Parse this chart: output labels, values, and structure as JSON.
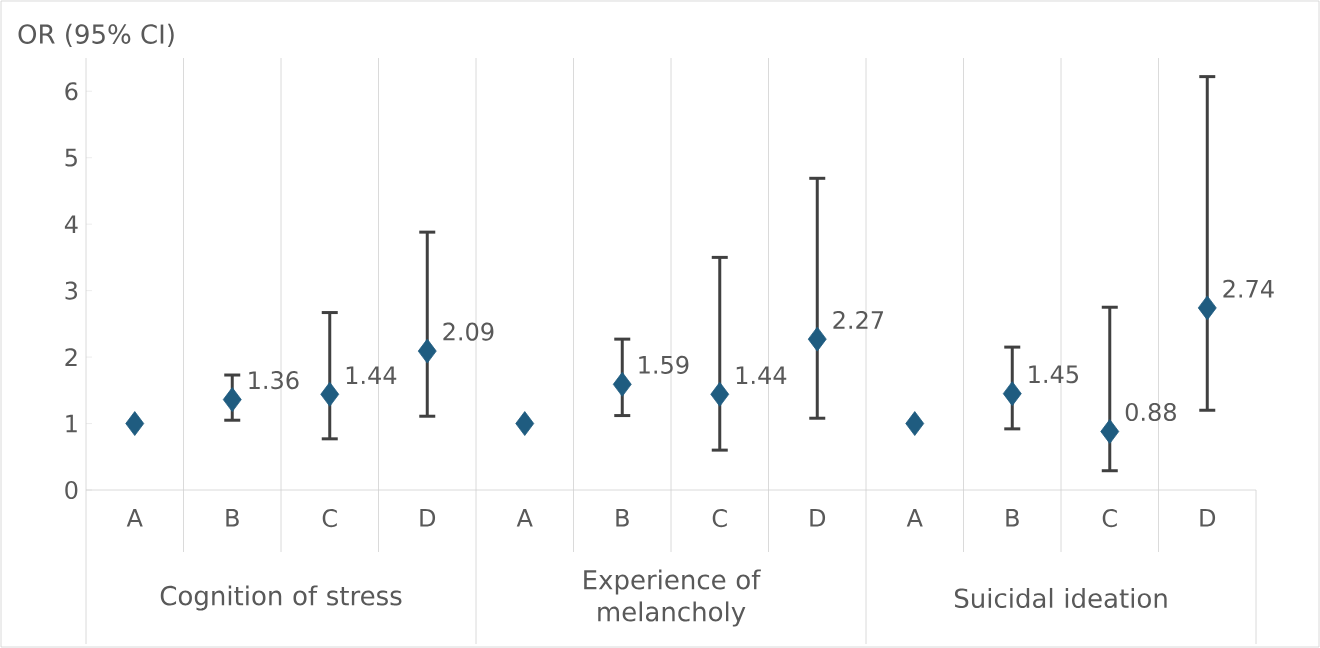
{
  "chart_data": {
    "type": "scatter",
    "ylabel": "OR (95% CI)",
    "categories": [
      "A",
      "B",
      "C",
      "D",
      "A",
      "B",
      "C",
      "D",
      "A",
      "B",
      "C",
      "D"
    ],
    "values": [
      1,
      1.36,
      1.44,
      2.09,
      1,
      1.59,
      1.44,
      2.27,
      1,
      1.45,
      0.88,
      2.74
    ],
    "errors": [
      null,
      [
        1.05,
        1.73
      ],
      [
        0.77,
        2.67
      ],
      [
        1.11,
        3.88
      ],
      null,
      [
        1.12,
        2.27
      ],
      [
        0.6,
        3.5
      ],
      [
        1.08,
        4.69
      ],
      null,
      [
        0.92,
        2.15
      ],
      [
        0.29,
        2.75
      ],
      [
        1.2,
        6.22
      ]
    ],
    "value_labels": [
      null,
      "1.36",
      "1.44",
      "2.09",
      null,
      "1.59",
      "1.44",
      "2.27",
      null,
      "1.45",
      "0.88",
      "2.74"
    ],
    "color": "#1f5c80",
    "marker": "diamond",
    "grid": "x",
    "ylim": [
      0,
      6.5
    ],
    "yticks": [
      0,
      1,
      2,
      3,
      4,
      5,
      6
    ],
    "annotations": [
      "Cognition of stress",
      "Experience of melancholy",
      "Suicidal ideation"
    ]
  }
}
